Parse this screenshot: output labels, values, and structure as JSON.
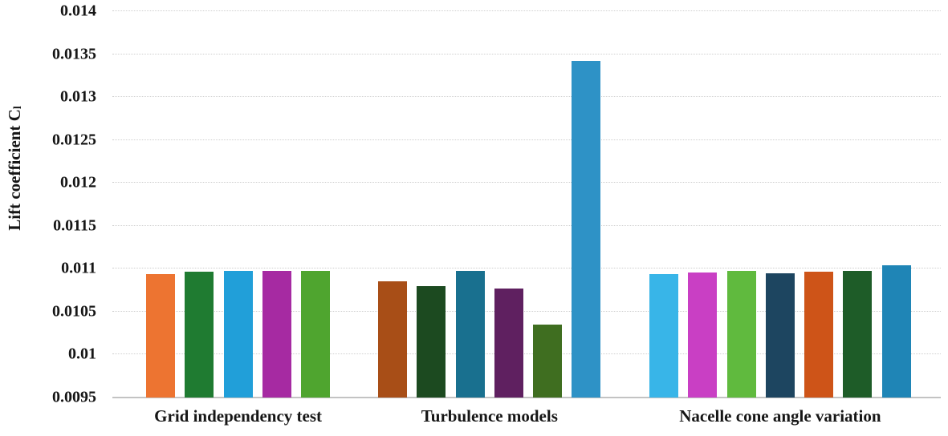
{
  "chart_data": {
    "type": "bar",
    "title": "",
    "ylabel_main": "Lift coefficient C",
    "ylabel_sub": "l",
    "xlabel": "",
    "ylim": [
      0.0095,
      0.014
    ],
    "grid": true,
    "legend": false,
    "yticks": [
      {
        "value": 0.014,
        "label": "0.014"
      },
      {
        "value": 0.0135,
        "label": "0.0135"
      },
      {
        "value": 0.013,
        "label": "0.013"
      },
      {
        "value": 0.0125,
        "label": "0.0125"
      },
      {
        "value": 0.012,
        "label": "0.012"
      },
      {
        "value": 0.0115,
        "label": "0.0115"
      },
      {
        "value": 0.011,
        "label": "0.011"
      },
      {
        "value": 0.0105,
        "label": "0.0105"
      },
      {
        "value": 0.01,
        "label": "0.01"
      },
      {
        "value": 0.0095,
        "label": "0.0095"
      }
    ],
    "groups": [
      {
        "label": "Grid independency test",
        "bars": [
          {
            "value": 0.01094,
            "color": "#ED7431"
          },
          {
            "value": 0.01097,
            "color": "#1F7B31"
          },
          {
            "value": 0.01098,
            "color": "#219FD9"
          },
          {
            "value": 0.01098,
            "color": "#A62AA2"
          },
          {
            "value": 0.01098,
            "color": "#4FA52F"
          }
        ]
      },
      {
        "label": "Turbulence models",
        "bars": [
          {
            "value": 0.01085,
            "color": "#A84E17"
          },
          {
            "value": 0.0108,
            "color": "#1C4A20"
          },
          {
            "value": 0.01098,
            "color": "#19708F"
          },
          {
            "value": 0.01077,
            "color": "#5F2060"
          },
          {
            "value": 0.01035,
            "color": "#3F6E20"
          },
          {
            "value": 0.01342,
            "color": "#2E92C6"
          }
        ]
      },
      {
        "label": "Nacelle cone angle variation",
        "bars": [
          {
            "value": 0.01094,
            "color": "#38B5E8"
          },
          {
            "value": 0.01096,
            "color": "#C93FC4"
          },
          {
            "value": 0.01098,
            "color": "#60BA3E"
          },
          {
            "value": 0.01095,
            "color": "#1D4560"
          },
          {
            "value": 0.01097,
            "color": "#CE5418"
          },
          {
            "value": 0.01098,
            "color": "#1E5C28"
          },
          {
            "value": 0.01104,
            "color": "#1F85B6"
          }
        ]
      }
    ]
  }
}
